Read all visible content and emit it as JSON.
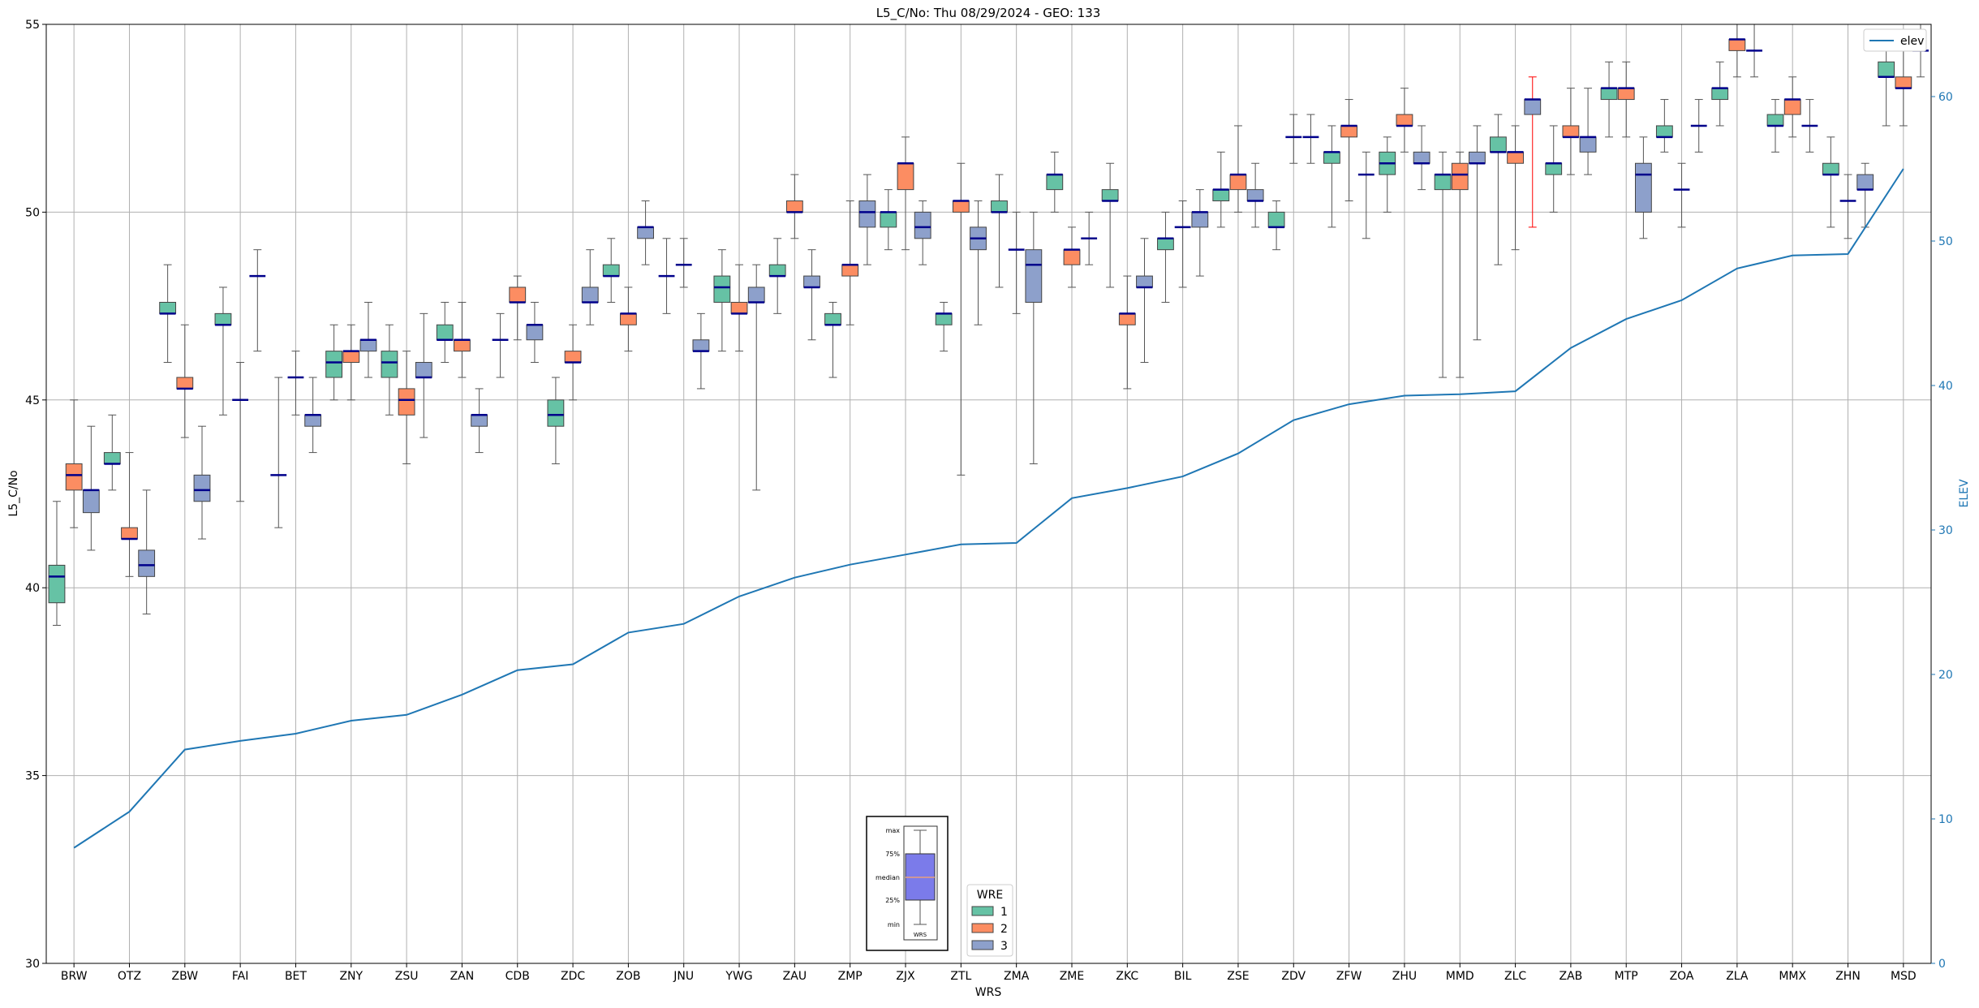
{
  "chart_data": {
    "type": "box",
    "title": "L5_C/No: Thu 08/29/2024 - GEO: 133",
    "xlabel": "WRS",
    "ylabel": "L5_C/No",
    "y2label": "ELEV",
    "ylim": [
      30,
      55
    ],
    "y2lim": [
      0,
      65
    ],
    "yticks": [
      30,
      35,
      40,
      45,
      50,
      55
    ],
    "y2ticks": [
      0,
      10,
      20,
      30,
      40,
      50,
      60
    ],
    "grid": true,
    "legend_lines": {
      "position": "top-right",
      "entries": [
        {
          "label": "elev",
          "color": "#1f77b4"
        }
      ]
    },
    "legend_wre": {
      "title": "WRE",
      "position": "bottom-center",
      "entries": [
        {
          "label": "1",
          "color": "#66c2a5"
        },
        {
          "label": "2",
          "color": "#fc8d62"
        },
        {
          "label": "3",
          "color": "#8da0cb"
        }
      ]
    },
    "legend_key": {
      "labels": [
        "max",
        "75%",
        "median",
        "25%",
        "min"
      ],
      "box_label": "WRS"
    },
    "colors": {
      "wre1": "#66c2a5",
      "wre2": "#fc8d62",
      "wre3": "#8da0cb",
      "median": "#00008b",
      "elev": "#1f77b4",
      "outlier_whisker": "#ff0000"
    },
    "categories": [
      "BRW",
      "OTZ",
      "ZBW",
      "FAI",
      "BET",
      "ZNY",
      "ZSU",
      "ZAN",
      "CDB",
      "ZDC",
      "ZOB",
      "JNU",
      "YWG",
      "ZAU",
      "ZMP",
      "ZJX",
      "ZTL",
      "ZMA",
      "ZME",
      "ZKC",
      "BIL",
      "ZSE",
      "ZDV",
      "ZFW",
      "ZHU",
      "MMD",
      "ZLC",
      "ZAB",
      "MTP",
      "ZOA",
      "ZLA",
      "MMX",
      "ZHN",
      "MSD"
    ],
    "elev": [
      8,
      10.5,
      14.8,
      15.4,
      15.9,
      16.8,
      17.2,
      18.6,
      20.3,
      20.7,
      22.9,
      23.5,
      25.4,
      26.7,
      27.6,
      28.3,
      29,
      29.1,
      32.2,
      32.9,
      33.7,
      35.3,
      37.6,
      38.7,
      39.3,
      39.4,
      39.6,
      42.6,
      44.6,
      45.9,
      48.1,
      49,
      49.1,
      55
    ],
    "boxes": [
      {
        "cat": "BRW",
        "wre": 1,
        "min": 39,
        "q1": 39.6,
        "median": 40.3,
        "q3": 40.6,
        "max": 42.3
      },
      {
        "cat": "BRW",
        "wre": 2,
        "min": 41.6,
        "q1": 42.6,
        "median": 43,
        "q3": 43.3,
        "max": 45
      },
      {
        "cat": "BRW",
        "wre": 3,
        "min": 41,
        "q1": 42,
        "median": 42.6,
        "q3": 42.6,
        "max": 44.3
      },
      {
        "cat": "OTZ",
        "wre": 1,
        "min": 42.6,
        "q1": 43.3,
        "median": 43.3,
        "q3": 43.6,
        "max": 44.6
      },
      {
        "cat": "OTZ",
        "wre": 2,
        "min": 40.3,
        "q1": 41.3,
        "median": 41.3,
        "q3": 41.6,
        "max": 43.6
      },
      {
        "cat": "OTZ",
        "wre": 3,
        "min": 39.3,
        "q1": 40.3,
        "median": 40.6,
        "q3": 41,
        "max": 42.6
      },
      {
        "cat": "ZBW",
        "wre": 1,
        "min": 46,
        "q1": 47.3,
        "median": 47.3,
        "q3": 47.6,
        "max": 48.6
      },
      {
        "cat": "ZBW",
        "wre": 2,
        "min": 44,
        "q1": 45.3,
        "median": 45.3,
        "q3": 45.6,
        "max": 47
      },
      {
        "cat": "ZBW",
        "wre": 3,
        "min": 41.3,
        "q1": 42.3,
        "median": 42.6,
        "q3": 43,
        "max": 44.3
      },
      {
        "cat": "FAI",
        "wre": 1,
        "min": 44.6,
        "q1": 47,
        "median": 47,
        "q3": 47.3,
        "max": 48
      },
      {
        "cat": "FAI",
        "wre": 2,
        "min": 42.3,
        "q1": 45,
        "median": 45,
        "q3": 45,
        "max": 46
      },
      {
        "cat": "FAI",
        "wre": 3,
        "min": 46.3,
        "q1": 48.3,
        "median": 48.3,
        "q3": 48.3,
        "max": 49
      },
      {
        "cat": "BET",
        "wre": 1,
        "min": 41.6,
        "q1": 43,
        "median": 43,
        "q3": 43,
        "max": 45.6
      },
      {
        "cat": "BET",
        "wre": 2,
        "min": 44.6,
        "q1": 45.6,
        "median": 45.6,
        "q3": 45.6,
        "max": 46.3
      },
      {
        "cat": "BET",
        "wre": 3,
        "min": 43.6,
        "q1": 44.3,
        "median": 44.6,
        "q3": 44.6,
        "max": 45.6
      },
      {
        "cat": "ZNY",
        "wre": 1,
        "min": 45,
        "q1": 45.6,
        "median": 46,
        "q3": 46.3,
        "max": 47
      },
      {
        "cat": "ZNY",
        "wre": 2,
        "min": 45,
        "q1": 46,
        "median": 46.3,
        "q3": 46.3,
        "max": 47
      },
      {
        "cat": "ZNY",
        "wre": 3,
        "min": 45.6,
        "q1": 46.3,
        "median": 46.6,
        "q3": 46.6,
        "max": 47.6
      },
      {
        "cat": "ZSU",
        "wre": 1,
        "min": 44.6,
        "q1": 45.6,
        "median": 46,
        "q3": 46.3,
        "max": 47
      },
      {
        "cat": "ZSU",
        "wre": 2,
        "min": 43.3,
        "q1": 44.6,
        "median": 45,
        "q3": 45.3,
        "max": 46.3
      },
      {
        "cat": "ZSU",
        "wre": 3,
        "min": 44,
        "q1": 45.6,
        "median": 45.6,
        "q3": 46,
        "max": 47.3
      },
      {
        "cat": "ZAN",
        "wre": 1,
        "min": 46,
        "q1": 46.6,
        "median": 46.6,
        "q3": 47,
        "max": 47.6
      },
      {
        "cat": "ZAN",
        "wre": 2,
        "min": 45.6,
        "q1": 46.3,
        "median": 46.6,
        "q3": 46.6,
        "max": 47.6
      },
      {
        "cat": "ZAN",
        "wre": 3,
        "min": 43.6,
        "q1": 44.3,
        "median": 44.6,
        "q3": 44.6,
        "max": 45.3
      },
      {
        "cat": "CDB",
        "wre": 1,
        "min": 45.6,
        "q1": 46.6,
        "median": 46.6,
        "q3": 46.6,
        "max": 47.3
      },
      {
        "cat": "CDB",
        "wre": 2,
        "min": 46.6,
        "q1": 47.6,
        "median": 47.6,
        "q3": 48,
        "max": 48.3
      },
      {
        "cat": "CDB",
        "wre": 3,
        "min": 46,
        "q1": 46.6,
        "median": 47,
        "q3": 47,
        "max": 47.6
      },
      {
        "cat": "ZDC",
        "wre": 1,
        "min": 43.3,
        "q1": 44.3,
        "median": 44.6,
        "q3": 45,
        "max": 45.6
      },
      {
        "cat": "ZDC",
        "wre": 2,
        "min": 45,
        "q1": 46,
        "median": 46,
        "q3": 46.3,
        "max": 47
      },
      {
        "cat": "ZDC",
        "wre": 3,
        "min": 47,
        "q1": 47.6,
        "median": 47.6,
        "q3": 48,
        "max": 49
      },
      {
        "cat": "ZOB",
        "wre": 1,
        "min": 47.6,
        "q1": 48.3,
        "median": 48.3,
        "q3": 48.6,
        "max": 49.3
      },
      {
        "cat": "ZOB",
        "wre": 2,
        "min": 46.3,
        "q1": 47,
        "median": 47.3,
        "q3": 47.3,
        "max": 48
      },
      {
        "cat": "ZOB",
        "wre": 3,
        "min": 48.6,
        "q1": 49.3,
        "median": 49.6,
        "q3": 49.6,
        "max": 50.3
      },
      {
        "cat": "JNU",
        "wre": 1,
        "min": 47.3,
        "q1": 48.3,
        "median": 48.3,
        "q3": 48.3,
        "max": 49.3
      },
      {
        "cat": "JNU",
        "wre": 2,
        "min": 48,
        "q1": 48.6,
        "median": 48.6,
        "q3": 48.6,
        "max": 49.3
      },
      {
        "cat": "JNU",
        "wre": 3,
        "min": 45.3,
        "q1": 46.3,
        "median": 46.3,
        "q3": 46.6,
        "max": 47.3
      },
      {
        "cat": "YWG",
        "wre": 1,
        "min": 46.3,
        "q1": 47.6,
        "median": 48,
        "q3": 48.3,
        "max": 49
      },
      {
        "cat": "YWG",
        "wre": 2,
        "min": 46.3,
        "q1": 47.3,
        "median": 47.3,
        "q3": 47.6,
        "max": 48.6
      },
      {
        "cat": "YWG",
        "wre": 3,
        "min": 42.6,
        "q1": 47.6,
        "median": 47.6,
        "q3": 48,
        "max": 48.6
      },
      {
        "cat": "ZAU",
        "wre": 1,
        "min": 47.3,
        "q1": 48.3,
        "median": 48.3,
        "q3": 48.6,
        "max": 49.3
      },
      {
        "cat": "ZAU",
        "wre": 2,
        "min": 49.3,
        "q1": 50,
        "median": 50,
        "q3": 50.3,
        "max": 51
      },
      {
        "cat": "ZAU",
        "wre": 3,
        "min": 46.6,
        "q1": 48,
        "median": 48,
        "q3": 48.3,
        "max": 49
      },
      {
        "cat": "ZMP",
        "wre": 1,
        "min": 45.6,
        "q1": 47,
        "median": 47,
        "q3": 47.3,
        "max": 47.6
      },
      {
        "cat": "ZMP",
        "wre": 2,
        "min": 47,
        "q1": 48.3,
        "median": 48.6,
        "q3": 48.6,
        "max": 50.3
      },
      {
        "cat": "ZMP",
        "wre": 3,
        "min": 48.6,
        "q1": 49.6,
        "median": 50,
        "q3": 50.3,
        "max": 51
      },
      {
        "cat": "ZJX",
        "wre": 1,
        "min": 49,
        "q1": 49.6,
        "median": 50,
        "q3": 50,
        "max": 50.6
      },
      {
        "cat": "ZJX",
        "wre": 2,
        "min": 49,
        "q1": 50.6,
        "median": 51.3,
        "q3": 51.3,
        "max": 52
      },
      {
        "cat": "ZJX",
        "wre": 3,
        "min": 48.6,
        "q1": 49.3,
        "median": 49.6,
        "q3": 50,
        "max": 50.3
      },
      {
        "cat": "ZTL",
        "wre": 1,
        "min": 46.3,
        "q1": 47,
        "median": 47.3,
        "q3": 47.3,
        "max": 47.6
      },
      {
        "cat": "ZTL",
        "wre": 2,
        "min": 43,
        "q1": 50,
        "median": 50.3,
        "q3": 50.3,
        "max": 51.3
      },
      {
        "cat": "ZTL",
        "wre": 3,
        "min": 47,
        "q1": 49,
        "median": 49.3,
        "q3": 49.6,
        "max": 50.3
      },
      {
        "cat": "ZMA",
        "wre": 1,
        "min": 48,
        "q1": 50,
        "median": 50,
        "q3": 50.3,
        "max": 51
      },
      {
        "cat": "ZMA",
        "wre": 2,
        "min": 47.3,
        "q1": 49,
        "median": 49,
        "q3": 49,
        "max": 50
      },
      {
        "cat": "ZMA",
        "wre": 3,
        "min": 43.3,
        "q1": 47.6,
        "median": 48.6,
        "q3": 49,
        "max": 50
      },
      {
        "cat": "ZME",
        "wre": 1,
        "min": 50,
        "q1": 50.6,
        "median": 51,
        "q3": 51,
        "max": 51.6
      },
      {
        "cat": "ZME",
        "wre": 2,
        "min": 48,
        "q1": 48.6,
        "median": 49,
        "q3": 49,
        "max": 49.6
      },
      {
        "cat": "ZME",
        "wre": 3,
        "min": 48.6,
        "q1": 49.3,
        "median": 49.3,
        "q3": 49.3,
        "max": 50
      },
      {
        "cat": "ZKC",
        "wre": 1,
        "min": 48,
        "q1": 50.3,
        "median": 50.3,
        "q3": 50.6,
        "max": 51.3
      },
      {
        "cat": "ZKC",
        "wre": 2,
        "min": 45.3,
        "q1": 47,
        "median": 47.3,
        "q3": 47.3,
        "max": 48.3
      },
      {
        "cat": "ZKC",
        "wre": 3,
        "min": 46,
        "q1": 48,
        "median": 48,
        "q3": 48.3,
        "max": 49.3
      },
      {
        "cat": "BIL",
        "wre": 1,
        "min": 47.6,
        "q1": 49,
        "median": 49.3,
        "q3": 49.3,
        "max": 50
      },
      {
        "cat": "BIL",
        "wre": 2,
        "min": 48,
        "q1": 49.6,
        "median": 49.6,
        "q3": 49.6,
        "max": 50.3
      },
      {
        "cat": "BIL",
        "wre": 3,
        "min": 48.3,
        "q1": 49.6,
        "median": 50,
        "q3": 50,
        "max": 50.6
      },
      {
        "cat": "ZSE",
        "wre": 1,
        "min": 49.6,
        "q1": 50.3,
        "median": 50.6,
        "q3": 50.6,
        "max": 51.6
      },
      {
        "cat": "ZSE",
        "wre": 2,
        "min": 50,
        "q1": 50.6,
        "median": 51,
        "q3": 51,
        "max": 52.3
      },
      {
        "cat": "ZSE",
        "wre": 3,
        "min": 49.6,
        "q1": 50.3,
        "median": 50.3,
        "q3": 50.6,
        "max": 51.3
      },
      {
        "cat": "ZDV",
        "wre": 1,
        "min": 49,
        "q1": 49.6,
        "median": 49.6,
        "q3": 50,
        "max": 50.3
      },
      {
        "cat": "ZDV",
        "wre": 2,
        "min": 51.3,
        "q1": 52,
        "median": 52,
        "q3": 52,
        "max": 52.6
      },
      {
        "cat": "ZDV",
        "wre": 3,
        "min": 51.3,
        "q1": 52,
        "median": 52,
        "q3": 52,
        "max": 52.6
      },
      {
        "cat": "ZFW",
        "wre": 1,
        "min": 49.6,
        "q1": 51.3,
        "median": 51.6,
        "q3": 51.6,
        "max": 52.3
      },
      {
        "cat": "ZFW",
        "wre": 2,
        "min": 50.3,
        "q1": 52,
        "median": 52.3,
        "q3": 52.3,
        "max": 53
      },
      {
        "cat": "ZFW",
        "wre": 3,
        "min": 49.3,
        "q1": 51,
        "median": 51,
        "q3": 51,
        "max": 51.6
      },
      {
        "cat": "ZHU",
        "wre": 1,
        "min": 50,
        "q1": 51,
        "median": 51.3,
        "q3": 51.6,
        "max": 52
      },
      {
        "cat": "ZHU",
        "wre": 2,
        "min": 51.6,
        "q1": 52.3,
        "median": 52.3,
        "q3": 52.6,
        "max": 53.3
      },
      {
        "cat": "ZHU",
        "wre": 3,
        "min": 50.6,
        "q1": 51.3,
        "median": 51.3,
        "q3": 51.6,
        "max": 52.3
      },
      {
        "cat": "MMD",
        "wre": 1,
        "min": 45.6,
        "q1": 50.6,
        "median": 51,
        "q3": 51,
        "max": 51.6
      },
      {
        "cat": "MMD",
        "wre": 2,
        "min": 45.6,
        "q1": 50.6,
        "median": 51,
        "q3": 51.3,
        "max": 51.6
      },
      {
        "cat": "MMD",
        "wre": 3,
        "min": 46.6,
        "q1": 51.3,
        "median": 51.3,
        "q3": 51.6,
        "max": 52.3
      },
      {
        "cat": "ZLC",
        "wre": 1,
        "min": 48.6,
        "q1": 51.6,
        "median": 51.6,
        "q3": 52,
        "max": 52.6
      },
      {
        "cat": "ZLC",
        "wre": 2,
        "min": 49,
        "q1": 51.3,
        "median": 51.6,
        "q3": 51.6,
        "max": 52.3
      },
      {
        "cat": "ZLC",
        "wre": 3,
        "min": 49.6,
        "q1": 52.6,
        "median": 53,
        "q3": 53,
        "max": 53.6,
        "flag": "outlier"
      },
      {
        "cat": "ZAB",
        "wre": 1,
        "min": 50,
        "q1": 51,
        "median": 51.3,
        "q3": 51.3,
        "max": 52.3
      },
      {
        "cat": "ZAB",
        "wre": 2,
        "min": 51,
        "q1": 52,
        "median": 52,
        "q3": 52.3,
        "max": 53.3
      },
      {
        "cat": "ZAB",
        "wre": 3,
        "min": 51,
        "q1": 51.6,
        "median": 52,
        "q3": 52,
        "max": 53.3
      },
      {
        "cat": "MTP",
        "wre": 1,
        "min": 52,
        "q1": 53,
        "median": 53.3,
        "q3": 53.3,
        "max": 54
      },
      {
        "cat": "MTP",
        "wre": 2,
        "min": 52,
        "q1": 53,
        "median": 53.3,
        "q3": 53.3,
        "max": 54
      },
      {
        "cat": "MTP",
        "wre": 3,
        "min": 49.3,
        "q1": 50,
        "median": 51,
        "q3": 51.3,
        "max": 52
      },
      {
        "cat": "ZOA",
        "wre": 1,
        "min": 51.6,
        "q1": 52,
        "median": 52,
        "q3": 52.3,
        "max": 53
      },
      {
        "cat": "ZOA",
        "wre": 2,
        "min": 49.6,
        "q1": 50.6,
        "median": 50.6,
        "q3": 50.6,
        "max": 51.3
      },
      {
        "cat": "ZOA",
        "wre": 3,
        "min": 51.6,
        "q1": 52.3,
        "median": 52.3,
        "q3": 52.3,
        "max": 53
      },
      {
        "cat": "ZLA",
        "wre": 1,
        "min": 52.3,
        "q1": 53,
        "median": 53.3,
        "q3": 53.3,
        "max": 54
      },
      {
        "cat": "ZLA",
        "wre": 2,
        "min": 53.6,
        "q1": 54.3,
        "median": 54.6,
        "q3": 54.6,
        "max": 55
      },
      {
        "cat": "ZLA",
        "wre": 3,
        "min": 53.6,
        "q1": 54.3,
        "median": 54.3,
        "q3": 54.3,
        "max": 55
      },
      {
        "cat": "MMX",
        "wre": 1,
        "min": 51.6,
        "q1": 52.3,
        "median": 52.3,
        "q3": 52.6,
        "max": 53
      },
      {
        "cat": "MMX",
        "wre": 2,
        "min": 52,
        "q1": 52.6,
        "median": 53,
        "q3": 53,
        "max": 53.6
      },
      {
        "cat": "MMX",
        "wre": 3,
        "min": 51.6,
        "q1": 52.3,
        "median": 52.3,
        "q3": 52.3,
        "max": 53
      },
      {
        "cat": "ZHN",
        "wre": 1,
        "min": 49.6,
        "q1": 51,
        "median": 51,
        "q3": 51.3,
        "max": 52
      },
      {
        "cat": "ZHN",
        "wre": 2,
        "min": 49.3,
        "q1": 50.3,
        "median": 50.3,
        "q3": 50.3,
        "max": 51
      },
      {
        "cat": "ZHN",
        "wre": 3,
        "min": 49.6,
        "q1": 50.6,
        "median": 50.6,
        "q3": 51,
        "max": 51.3
      },
      {
        "cat": "MSD",
        "wre": 1,
        "min": 52.3,
        "q1": 53.6,
        "median": 53.6,
        "q3": 54,
        "max": 54.6
      },
      {
        "cat": "MSD",
        "wre": 2,
        "min": 52.3,
        "q1": 53.3,
        "median": 53.3,
        "q3": 53.6,
        "max": 54.3
      },
      {
        "cat": "MSD",
        "wre": 3,
        "min": 53.6,
        "q1": 54.3,
        "median": 54.3,
        "q3": 54.3,
        "max": 55
      }
    ]
  }
}
